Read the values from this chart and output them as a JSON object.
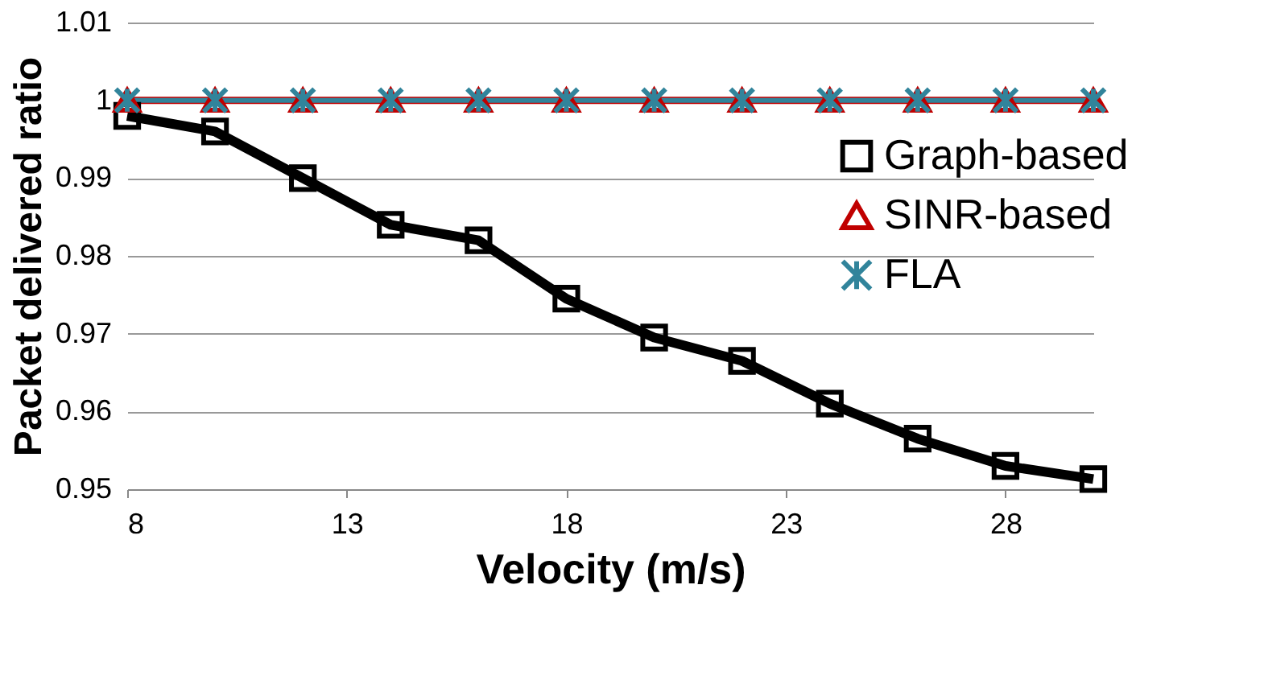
{
  "chart_data": {
    "type": "line",
    "xlabel": "Velocity (m/s)",
    "ylabel": "Packet delivered ratio",
    "x": [
      8,
      10,
      12,
      14,
      16,
      18,
      20,
      22,
      24,
      26,
      28,
      30
    ],
    "xlim": [
      8,
      30
    ],
    "xticks": [
      8,
      13,
      18,
      23,
      28
    ],
    "ylim": [
      0.95,
      1.01
    ],
    "yticks": [
      0.95,
      0.96,
      0.97,
      0.98,
      0.99,
      1,
      1.01
    ],
    "grid": "y",
    "legend": "right",
    "line_style": "solid",
    "series": [
      {
        "name": "Graph-based",
        "color": "#000000",
        "marker": "square",
        "values": [
          0.998,
          0.996,
          0.99,
          0.984,
          0.982,
          0.9745,
          0.9695,
          0.9665,
          0.961,
          0.9565,
          0.953,
          0.9513
        ]
      },
      {
        "name": "SINR-based",
        "color": "#c00000",
        "marker": "triangle",
        "values": [
          1,
          1,
          1,
          1,
          1,
          1,
          1,
          1,
          1,
          1,
          1,
          1
        ]
      },
      {
        "name": "FLA",
        "color": "#31849b",
        "marker": "cross",
        "values": [
          1,
          1,
          1,
          1,
          1,
          1,
          1,
          1,
          1,
          1,
          1,
          1
        ]
      }
    ]
  }
}
